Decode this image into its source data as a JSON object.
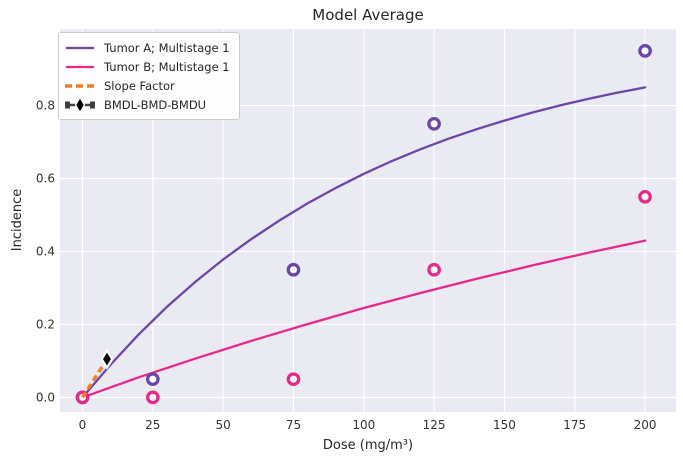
{
  "chart_data": {
    "type": "line",
    "title": "Model Average",
    "xlabel": "Dose (mg/m³)",
    "ylabel": "Incidence",
    "xlim": [
      -8,
      211
    ],
    "ylim": [
      -0.04,
      1.01
    ],
    "xticks": [
      "0",
      "25",
      "50",
      "75",
      "100",
      "125",
      "150",
      "175",
      "200"
    ],
    "xtick_values": [
      0,
      25,
      50,
      75,
      100,
      125,
      150,
      175,
      200
    ],
    "yticks": [
      "0.0",
      "0.2",
      "0.4",
      "0.6",
      "0.8"
    ],
    "ytick_values": [
      0.0,
      0.2,
      0.4,
      0.6,
      0.8
    ],
    "grid": true,
    "legend_position": "upper-left",
    "plot_background": "#eaeaf2",
    "grid_color": "#ffffff",
    "text_color": "#333333",
    "series": [
      {
        "name": "Tumor A; Multistage 1",
        "type": "curve+points",
        "color": "#6b46a8",
        "curve": [
          [
            0,
            0
          ],
          [
            10,
            0.09
          ],
          [
            20,
            0.173
          ],
          [
            30,
            0.248
          ],
          [
            40,
            0.316
          ],
          [
            50,
            0.378
          ],
          [
            60,
            0.434
          ],
          [
            70,
            0.485
          ],
          [
            80,
            0.532
          ],
          [
            90,
            0.574
          ],
          [
            100,
            0.613
          ],
          [
            110,
            0.648
          ],
          [
            120,
            0.68
          ],
          [
            130,
            0.709
          ],
          [
            140,
            0.735
          ],
          [
            150,
            0.759
          ],
          [
            160,
            0.781
          ],
          [
            170,
            0.801
          ],
          [
            180,
            0.819
          ],
          [
            190,
            0.835
          ],
          [
            200,
            0.85
          ]
        ],
        "points": [
          [
            0,
            0.0
          ],
          [
            25,
            0.05
          ],
          [
            75,
            0.35
          ],
          [
            125,
            0.75
          ],
          [
            200,
            0.95
          ]
        ]
      },
      {
        "name": "Tumor B; Multistage 1",
        "type": "curve+points",
        "color": "#e7298a",
        "curve": [
          [
            0,
            0
          ],
          [
            20,
            0.055
          ],
          [
            40,
            0.106
          ],
          [
            60,
            0.155
          ],
          [
            80,
            0.201
          ],
          [
            100,
            0.245
          ],
          [
            120,
            0.286
          ],
          [
            140,
            0.325
          ],
          [
            160,
            0.362
          ],
          [
            180,
            0.397
          ],
          [
            200,
            0.43
          ]
        ],
        "points": [
          [
            0,
            0.0
          ],
          [
            25,
            0.0
          ],
          [
            75,
            0.05
          ],
          [
            125,
            0.35
          ],
          [
            200,
            0.55
          ]
        ]
      },
      {
        "name": "Slope Factor",
        "type": "dashed-line",
        "color": "#f57d1e",
        "curve": [
          [
            0,
            0
          ],
          [
            8.7,
            0.105
          ]
        ]
      },
      {
        "name": "BMDL-BMD-BMDU",
        "type": "bmd-marker",
        "color": "#0d0d0d",
        "points": [
          [
            8.7,
            0.105
          ]
        ]
      }
    ]
  }
}
